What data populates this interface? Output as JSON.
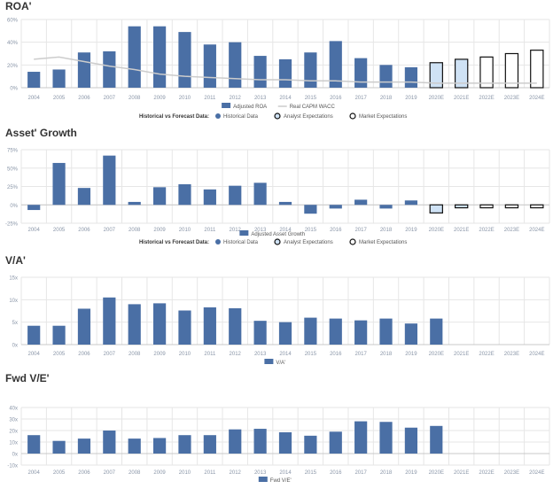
{
  "legend_labels": {
    "section_label": "Historical vs Forecast Data:",
    "historical": "Historical Data",
    "analyst": "Analyst Expectations",
    "market": "Market Expectations"
  },
  "colors": {
    "bar": "#4a6fa5",
    "analyst_fill": "#cfe2f5",
    "market_fill": "#ffffff",
    "forecast_stroke": "#111111",
    "wacc_line": "#cccccc",
    "grid": "#e6e6e6",
    "axis_text": "#8a96a8"
  },
  "chart_data": [
    {
      "type": "bar",
      "title": "ROA'",
      "categories": [
        "2004",
        "2005",
        "2006",
        "2007",
        "2008",
        "2009",
        "2010",
        "2011",
        "2012",
        "2013",
        "2014",
        "2015",
        "2016",
        "2017",
        "2018",
        "2019",
        "2020E",
        "2021E",
        "2022E",
        "2023E",
        "2024E"
      ],
      "series": [
        {
          "name": "Adjusted ROA",
          "values": [
            14,
            16,
            31,
            32,
            54,
            54,
            49,
            38,
            40,
            28,
            25,
            31,
            41,
            26,
            20,
            18,
            22,
            25,
            27,
            30,
            33
          ]
        },
        {
          "name": "Real CAPM WACC",
          "type": "line",
          "values": [
            25,
            27,
            23,
            19,
            16,
            12,
            10,
            9,
            8,
            7,
            7,
            6,
            6,
            5,
            5,
            5,
            4,
            4,
            4,
            4,
            4
          ]
        }
      ],
      "forecast": [
        "historical",
        "historical",
        "historical",
        "historical",
        "historical",
        "historical",
        "historical",
        "historical",
        "historical",
        "historical",
        "historical",
        "historical",
        "historical",
        "historical",
        "historical",
        "historical",
        "analyst",
        "analyst",
        "market",
        "market",
        "market"
      ],
      "yticks": [
        "0%",
        "20%",
        "40%",
        "60%"
      ],
      "ylim": [
        0,
        60
      ],
      "legend": [
        "Adjusted ROA",
        "Real CAPM WACC"
      ],
      "forecast_legend": true
    },
    {
      "type": "bar",
      "title": "Asset' Growth",
      "categories": [
        "2004",
        "2005",
        "2006",
        "2007",
        "2008",
        "2009",
        "2010",
        "2011",
        "2012",
        "2013",
        "2014",
        "2015",
        "2016",
        "2017",
        "2018",
        "2019",
        "2020E",
        "2021E",
        "2022E",
        "2023E",
        "2024E"
      ],
      "series": [
        {
          "name": "Adjusted Asset Growth",
          "values": [
            -7,
            57,
            23,
            67,
            4,
            24,
            28,
            21,
            26,
            30,
            4,
            -12,
            -5,
            7,
            -5,
            6,
            -11,
            -4,
            -4,
            -4,
            -4
          ]
        }
      ],
      "forecast": [
        "historical",
        "historical",
        "historical",
        "historical",
        "historical",
        "historical",
        "historical",
        "historical",
        "historical",
        "historical",
        "historical",
        "historical",
        "historical",
        "historical",
        "historical",
        "historical",
        "analyst",
        "analyst",
        "market",
        "market",
        "market"
      ],
      "yticks": [
        "-25%",
        "0%",
        "25%",
        "50%",
        "75%"
      ],
      "ylim": [
        -25,
        75
      ],
      "legend": [
        "Adjusted Asset Growth"
      ],
      "forecast_legend": true
    },
    {
      "type": "bar",
      "title": "V/A'",
      "categories": [
        "2004",
        "2005",
        "2006",
        "2007",
        "2008",
        "2009",
        "2010",
        "2011",
        "2012",
        "2013",
        "2014",
        "2015",
        "2016",
        "2017",
        "2018",
        "2019",
        "2020E",
        "2021E",
        "2022E",
        "2023E",
        "2024E"
      ],
      "series": [
        {
          "name": "V/A'",
          "values": [
            4.2,
            4.2,
            8,
            10.5,
            9,
            9.2,
            7.6,
            8.3,
            8.1,
            5.3,
            5,
            6,
            5.8,
            5.4,
            5.8,
            4.7,
            5.8,
            null,
            null,
            null,
            null
          ]
        }
      ],
      "forecast": [],
      "yticks": [
        "0x",
        "5x",
        "10x",
        "15x"
      ],
      "ylim": [
        0,
        15
      ],
      "legend": [
        "V/A'"
      ],
      "forecast_legend": false
    },
    {
      "type": "bar",
      "title": "Fwd V/E'",
      "categories": [
        "2004",
        "2005",
        "2006",
        "2007",
        "2008",
        "2009",
        "2010",
        "2011",
        "2012",
        "2013",
        "2014",
        "2015",
        "2016",
        "2017",
        "2018",
        "2019",
        "2020E",
        "2021E",
        "2022E",
        "2023E",
        "2024E"
      ],
      "series": [
        {
          "name": "Fwd V/E'",
          "values": [
            16,
            11,
            13,
            20,
            13,
            13.5,
            16,
            16,
            21,
            21.5,
            18.5,
            15.5,
            19,
            28,
            27.5,
            22.5,
            24,
            null,
            null,
            null,
            null
          ]
        }
      ],
      "forecast": [],
      "yticks": [
        "-10x",
        "0x",
        "10x",
        "20x",
        "30x",
        "40x"
      ],
      "ylim": [
        -10,
        40
      ],
      "legend": [
        "Fwd V/E'"
      ],
      "forecast_legend": false
    }
  ]
}
